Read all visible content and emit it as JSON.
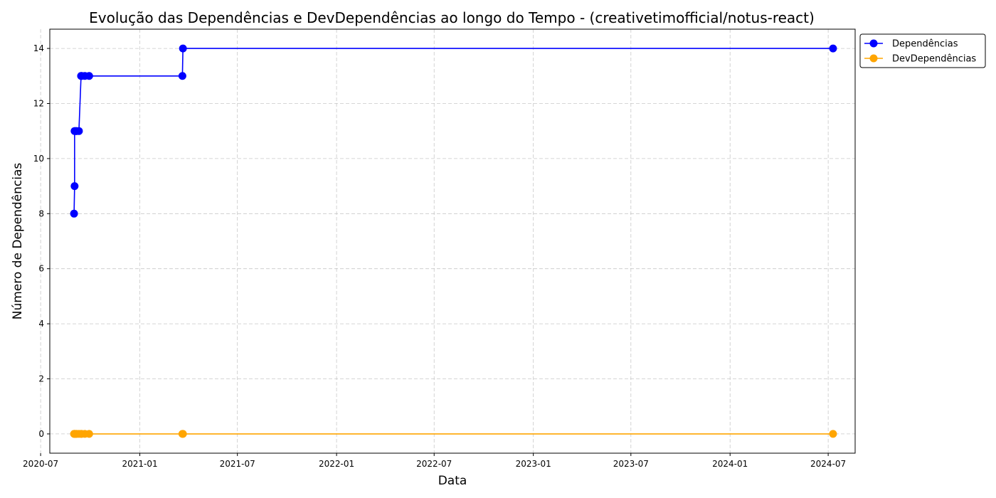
{
  "chart_data": {
    "type": "line",
    "title": "Evolução das Dependências e DevDependências ao longo do Tempo - (creativetimofficial/notus-react)",
    "xlabel": "Data",
    "ylabel": "Número de Dependências",
    "x_type": "date",
    "xlim": [
      "2020-07-18",
      "2024-08-20"
    ],
    "ylim": [
      -0.7,
      14.7
    ],
    "grid": true,
    "legend_position": "top-right-outside",
    "x_ticks": [
      "2020-07-01",
      "2021-01-01",
      "2021-07-01",
      "2022-01-01",
      "2022-07-01",
      "2023-01-01",
      "2023-07-01",
      "2024-01-01",
      "2024-07-01"
    ],
    "x_tick_labels": [
      "2020-07",
      "2021-01",
      "2021-07",
      "2022-01",
      "2022-07",
      "2023-01",
      "2023-07",
      "2024-01",
      "2024-07"
    ],
    "y_ticks": [
      0,
      2,
      4,
      6,
      8,
      10,
      12,
      14
    ],
    "y_tick_labels": [
      "0",
      "2",
      "4",
      "6",
      "8",
      "10",
      "12",
      "14"
    ],
    "series": [
      {
        "name": "Dependências",
        "color": "#0000ff",
        "x": [
          "2020-09-01",
          "2020-09-02",
          "2020-09-02",
          "2020-09-03",
          "2020-09-05",
          "2020-09-06",
          "2020-09-10",
          "2020-09-14",
          "2020-09-15",
          "2020-09-21",
          "2020-09-29",
          "2021-03-21",
          "2021-03-22",
          "2024-07-10"
        ],
        "y": [
          8,
          9,
          11,
          11,
          11,
          11,
          11,
          13,
          13,
          13,
          13,
          13,
          14,
          14
        ]
      },
      {
        "name": "DevDependências",
        "color": "#ffa500",
        "x": [
          "2020-09-01",
          "2020-09-02",
          "2020-09-02",
          "2020-09-03",
          "2020-09-05",
          "2020-09-06",
          "2020-09-10",
          "2020-09-14",
          "2020-09-15",
          "2020-09-21",
          "2020-09-29",
          "2021-03-21",
          "2021-03-22",
          "2024-07-10"
        ],
        "y": [
          0,
          0,
          0,
          0,
          0,
          0,
          0,
          0,
          0,
          0,
          0,
          0,
          0,
          0
        ]
      }
    ]
  }
}
